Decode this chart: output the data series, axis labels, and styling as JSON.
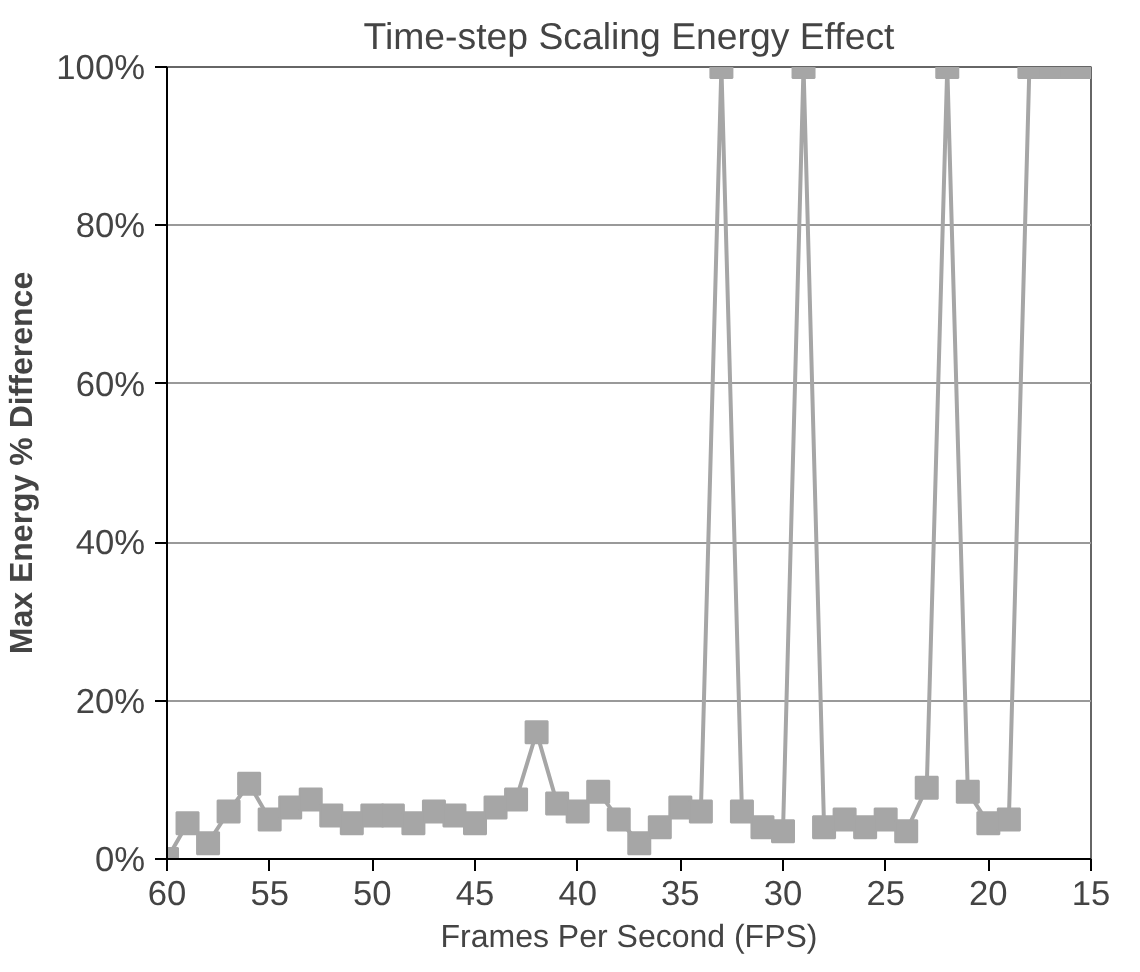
{
  "chart_data": {
    "type": "line",
    "title": "Time-step Scaling Energy Effect",
    "xlabel": "Frames Per Second (FPS)",
    "ylabel": "Max Energy % Difference",
    "x": [
      60,
      59,
      58,
      57,
      56,
      55,
      54,
      53,
      52,
      51,
      50,
      49,
      48,
      47,
      46,
      45,
      44,
      43,
      42,
      41,
      40,
      39,
      38,
      37,
      36,
      35,
      34,
      33,
      32,
      31,
      30,
      29,
      28,
      27,
      26,
      25,
      24,
      23,
      22,
      21,
      20,
      19,
      18,
      17,
      16,
      15
    ],
    "series": [
      {
        "color": "#a6a6a6",
        "values": [
          0,
          4.5,
          2,
          6,
          9.5,
          5,
          6.5,
          7.5,
          5.5,
          4.5,
          5.5,
          5.5,
          4.5,
          6,
          5.5,
          4.5,
          6.5,
          7.5,
          16,
          7,
          6,
          8.5,
          5,
          2,
          4,
          6.5,
          6,
          100,
          6,
          4,
          3.5,
          100,
          4,
          5,
          4,
          5,
          3.5,
          9,
          100,
          8.5,
          4.5,
          5,
          100,
          100,
          100,
          100
        ]
      }
    ],
    "xlim": [
      60,
      15
    ],
    "xticks": [
      60,
      55,
      50,
      45,
      40,
      35,
      30,
      25,
      20,
      15
    ],
    "ylim": [
      0,
      100
    ],
    "yticks": [
      {
        "value": 0,
        "label": "0%"
      },
      {
        "value": 20,
        "label": "20%"
      },
      {
        "value": 40,
        "label": "40%"
      },
      {
        "value": 60,
        "label": "60%"
      },
      {
        "value": 80,
        "label": "80%"
      },
      {
        "value": 100,
        "label": "100%"
      }
    ],
    "grid": "y",
    "marker": "square",
    "line_style": "solid"
  }
}
